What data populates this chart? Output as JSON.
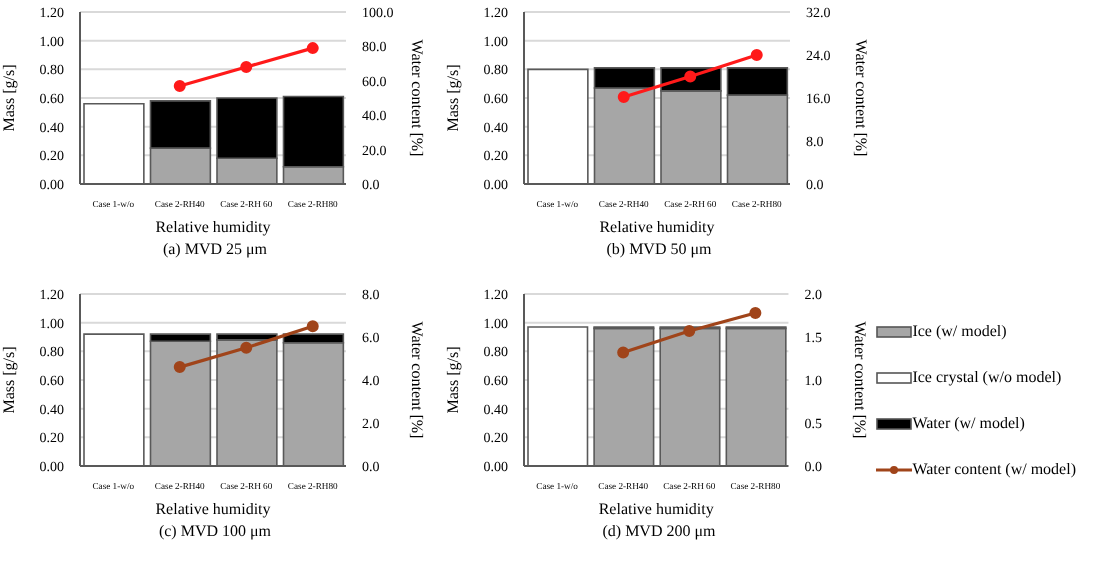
{
  "chart_data": [
    {
      "type": "bar",
      "title": "(a) MVD 25 μm",
      "xlabel": "Relative humidity",
      "ylabel": "Mass [g/s]",
      "y2label": "Water content [%]",
      "categories": [
        "Case 1-w/o",
        "Case 2-RH40",
        "Case 2-RH 60",
        "Case 2-RH80"
      ],
      "stacked": true,
      "grid": "y",
      "legend": false,
      "marker": "circle",
      "series": [
        {
          "color": "#ffffff",
          "values": [
            0.56,
            null,
            null,
            null
          ]
        },
        {
          "color": "#a6a6a6",
          "values": [
            null,
            0.25,
            0.18,
            0.12
          ]
        },
        {
          "color": "#000000",
          "values": [
            null,
            0.33,
            0.42,
            0.49
          ]
        },
        {
          "type": "line",
          "axis": "y2",
          "color": "#ff1a1a",
          "values": [
            null,
            57,
            68,
            79
          ]
        }
      ],
      "ylim": [
        0,
        1.2
      ],
      "yticks": [
        {
          "value": 0,
          "label": "0.00"
        },
        {
          "value": 0.2,
          "label": "0.20"
        },
        {
          "value": 0.4,
          "label": "0.40"
        },
        {
          "value": 0.6,
          "label": "0.60"
        },
        {
          "value": 0.8,
          "label": "0.80"
        },
        {
          "value": 1,
          "label": "1.00"
        },
        {
          "value": 1.2,
          "label": "1.20"
        }
      ],
      "y2lim": [
        0,
        100
      ],
      "y2ticks": [
        {
          "value": 0,
          "label": "0.0"
        },
        {
          "value": 20,
          "label": "20.0"
        },
        {
          "value": 40,
          "label": "40.0"
        },
        {
          "value": 60,
          "label": "60.0"
        },
        {
          "value": 80,
          "label": "80.0"
        },
        {
          "value": 100,
          "label": "100.0"
        }
      ]
    },
    {
      "type": "bar",
      "title": "(b) MVD 50 μm",
      "xlabel": "Relative humidity",
      "ylabel": "Mass [g/s]",
      "y2label": "Water content [%]",
      "categories": [
        "Case 1-w/o",
        "Case 2-RH40",
        "Case 2-RH 60",
        "Case 2-RH80"
      ],
      "stacked": true,
      "grid": "y",
      "legend": false,
      "marker": "circle",
      "series": [
        {
          "color": "#ffffff",
          "values": [
            0.8,
            null,
            null,
            null
          ]
        },
        {
          "color": "#a6a6a6",
          "values": [
            null,
            0.67,
            0.65,
            0.62
          ]
        },
        {
          "color": "#000000",
          "values": [
            null,
            0.14,
            0.16,
            0.19
          ]
        },
        {
          "type": "line",
          "axis": "y2",
          "color": "#ff1a1a",
          "values": [
            null,
            16.2,
            20,
            24
          ]
        }
      ],
      "ylim": [
        0,
        1.2
      ],
      "yticks": [
        {
          "value": 0,
          "label": "0.00"
        },
        {
          "value": 0.2,
          "label": "0.20"
        },
        {
          "value": 0.4,
          "label": "0.40"
        },
        {
          "value": 0.6,
          "label": "0.60"
        },
        {
          "value": 0.8,
          "label": "0.80"
        },
        {
          "value": 1,
          "label": "1.00"
        },
        {
          "value": 1.2,
          "label": "1.20"
        }
      ],
      "y2lim": [
        0,
        32
      ],
      "y2ticks": [
        {
          "value": 0,
          "label": "0.0"
        },
        {
          "value": 8,
          "label": "8.0"
        },
        {
          "value": 16,
          "label": "16.0"
        },
        {
          "value": 24,
          "label": "24.0"
        },
        {
          "value": 32,
          "label": "32.0"
        }
      ]
    },
    {
      "type": "bar",
      "title": "(c) MVD 100 μm",
      "xlabel": "Relative humidity",
      "ylabel": "Mass [g/s]",
      "y2label": "Water content [%]",
      "categories": [
        "Case 1-w/o",
        "Case 2-RH40",
        "Case 2-RH 60",
        "Case 2-RH80"
      ],
      "stacked": true,
      "grid": "y",
      "legend": false,
      "marker": "circle",
      "series": [
        {
          "color": "#ffffff",
          "values": [
            0.92,
            null,
            null,
            null
          ]
        },
        {
          "color": "#a6a6a6",
          "values": [
            null,
            0.87,
            0.88,
            0.86
          ]
        },
        {
          "color": "#000000",
          "values": [
            null,
            0.05,
            0.04,
            0.06
          ]
        },
        {
          "type": "line",
          "axis": "y2",
          "color": "#a0441a",
          "values": [
            null,
            4.6,
            5.5,
            6.5
          ]
        }
      ],
      "ylim": [
        0,
        1.2
      ],
      "yticks": [
        {
          "value": 0,
          "label": "0.00"
        },
        {
          "value": 0.2,
          "label": "0.20"
        },
        {
          "value": 0.4,
          "label": "0.40"
        },
        {
          "value": 0.6,
          "label": "0.60"
        },
        {
          "value": 0.8,
          "label": "0.80"
        },
        {
          "value": 1,
          "label": "1.00"
        },
        {
          "value": 1.2,
          "label": "1.20"
        }
      ],
      "y2lim": [
        0,
        8
      ],
      "y2ticks": [
        {
          "value": 0,
          "label": "0.0"
        },
        {
          "value": 2,
          "label": "2.0"
        },
        {
          "value": 4,
          "label": "4.0"
        },
        {
          "value": 6,
          "label": "6.0"
        },
        {
          "value": 8,
          "label": "8.0"
        }
      ]
    },
    {
      "type": "bar",
      "title": "(d) MVD 200 μm",
      "xlabel": "Relative humidity",
      "ylabel": "Mass [g/s]",
      "y2label": "Water content [%]",
      "categories": [
        "Case 1-w/o",
        "Case 2-RH40",
        "Case 2-RH 60",
        "Case 2-RH80"
      ],
      "stacked": true,
      "grid": "y",
      "legend": "right",
      "marker": "circle",
      "series": [
        {
          "name": "Ice crystal (w/o model)",
          "color": "#ffffff",
          "values": [
            0.97,
            null,
            null,
            null
          ]
        },
        {
          "name": "Ice (w/ model)",
          "color": "#a6a6a6",
          "values": [
            null,
            0.96,
            0.96,
            0.96
          ]
        },
        {
          "name": "Water (w/ model)",
          "color": "#000000",
          "values": [
            null,
            0.01,
            0.01,
            0.01
          ]
        },
        {
          "name": "Water content (w/ model)",
          "type": "line",
          "axis": "y2",
          "color": "#a0441a",
          "values": [
            null,
            1.32,
            1.57,
            1.78
          ]
        }
      ],
      "ylim": [
        0,
        1.2
      ],
      "yticks": [
        {
          "value": 0,
          "label": "0.00"
        },
        {
          "value": 0.2,
          "label": "0.20"
        },
        {
          "value": 0.4,
          "label": "0.40"
        },
        {
          "value": 0.6,
          "label": "0.60"
        },
        {
          "value": 0.8,
          "label": "0.80"
        },
        {
          "value": 1,
          "label": "1.00"
        },
        {
          "value": 1.2,
          "label": "1.20"
        }
      ],
      "y2lim": [
        0,
        2
      ],
      "y2ticks": [
        {
          "value": 0,
          "label": "0.0"
        },
        {
          "value": 0.5,
          "label": "0.5"
        },
        {
          "value": 1,
          "label": "1.0"
        },
        {
          "value": 1.5,
          "label": "1.5"
        },
        {
          "value": 2,
          "label": "2.0"
        }
      ]
    }
  ]
}
